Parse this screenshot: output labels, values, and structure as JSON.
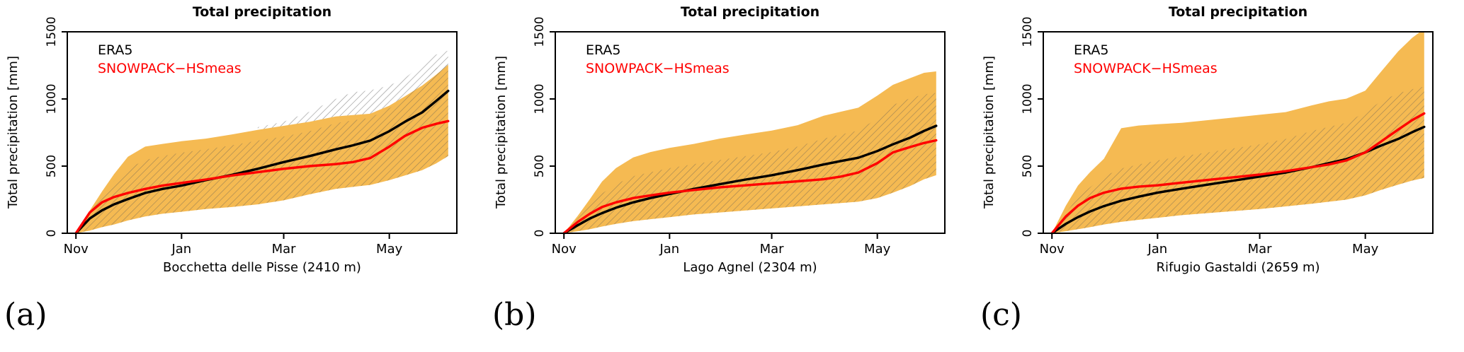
{
  "figure": {
    "colors": {
      "band": "#F5BA52",
      "hatch_line": "#5E5A54",
      "gray_hatch_line": "#8C8C8C",
      "axis": "#000000",
      "era5_line": "#000000",
      "snowpack_line": "#FF0000"
    }
  },
  "chart_data": [
    {
      "type": "line",
      "panel_label": "(a)",
      "title": "Total precipitation",
      "xlabel": "Bocchetta delle Pisse (2410 m)",
      "ylabel": "Total precipitation [mm]",
      "xlim": [
        -5,
        220
      ],
      "ylim": [
        0,
        1500
      ],
      "x_unit": "days since Nov 1",
      "x_ticks": [
        {
          "value": 0,
          "label": "Nov"
        },
        {
          "value": 61,
          "label": "Jan"
        },
        {
          "value": 120,
          "label": "Mar"
        },
        {
          "value": 181,
          "label": "May"
        }
      ],
      "y_ticks": [
        0,
        500,
        1000,
        1500
      ],
      "legend": [
        {
          "label": "ERA5",
          "color": "#000000"
        },
        {
          "label": "SNOWPACK−HSmeas",
          "color": "#FF0000"
        }
      ],
      "x": [
        0,
        8,
        15,
        22,
        30,
        40,
        50,
        61,
        75,
        90,
        105,
        120,
        135,
        150,
        160,
        170,
        181,
        190,
        200,
        208,
        215
      ],
      "series": [
        {
          "name": "ERA5",
          "color": "#000000",
          "values": [
            0,
            110,
            170,
            215,
            255,
            300,
            330,
            355,
            395,
            435,
            480,
            530,
            575,
            625,
            655,
            690,
            760,
            830,
            900,
            985,
            1060
          ]
        },
        {
          "name": "SNOWPACK-HSmeas",
          "color": "#FF0000",
          "values": [
            0,
            155,
            230,
            270,
            300,
            330,
            355,
            375,
            400,
            430,
            455,
            480,
            500,
            515,
            530,
            560,
            645,
            725,
            785,
            815,
            835
          ]
        }
      ],
      "bands": [
        {
          "name": "ensemble-range",
          "style": "orange",
          "lower": [
            0,
            20,
            45,
            65,
            95,
            125,
            145,
            160,
            180,
            195,
            215,
            245,
            290,
            330,
            345,
            360,
            395,
            430,
            470,
            520,
            575
          ],
          "upper": [
            0,
            170,
            310,
            440,
            570,
            645,
            665,
            685,
            705,
            735,
            770,
            800,
            830,
            870,
            880,
            890,
            950,
            1020,
            1100,
            1180,
            1255
          ]
        },
        {
          "name": "ensemble-hatched",
          "style": "hatch",
          "lower": [
            0,
            20,
            45,
            65,
            95,
            125,
            145,
            160,
            180,
            195,
            215,
            245,
            290,
            330,
            345,
            360,
            395,
            430,
            470,
            520,
            575
          ],
          "upper": [
            0,
            160,
            280,
            390,
            480,
            545,
            575,
            600,
            625,
            655,
            690,
            720,
            760,
            820,
            840,
            860,
            930,
            1010,
            1110,
            1230,
            1255
          ]
        },
        {
          "name": "era5-spread-gray",
          "style": "grayhatch",
          "x": [
            105,
            120,
            135,
            150,
            160,
            170,
            181,
            190,
            200,
            208,
            215
          ],
          "lower": [
            770,
            800,
            830,
            870,
            880,
            890,
            950,
            1020,
            1100,
            1180,
            1255
          ],
          "upper": [
            790,
            830,
            905,
            1000,
            1050,
            1065,
            1100,
            1155,
            1255,
            1330,
            1360
          ]
        }
      ]
    },
    {
      "type": "line",
      "panel_label": "(b)",
      "title": "Total precipitation",
      "xlabel": "Lago Agnel (2304 m)",
      "ylabel": "Total precipitation [mm]",
      "xlim": [
        -5,
        220
      ],
      "ylim": [
        0,
        1500
      ],
      "x_unit": "days since Nov 1",
      "x_ticks": [
        {
          "value": 0,
          "label": "Nov"
        },
        {
          "value": 61,
          "label": "Jan"
        },
        {
          "value": 120,
          "label": "Mar"
        },
        {
          "value": 181,
          "label": "May"
        }
      ],
      "y_ticks": [
        0,
        500,
        1000,
        1500
      ],
      "legend": [
        {
          "label": "ERA5",
          "color": "#000000"
        },
        {
          "label": "SNOWPACK−HSmeas",
          "color": "#FF0000"
        }
      ],
      "x": [
        0,
        8,
        15,
        22,
        30,
        40,
        50,
        61,
        75,
        90,
        105,
        120,
        135,
        150,
        160,
        170,
        181,
        190,
        200,
        208,
        215
      ],
      "series": [
        {
          "name": "ERA5",
          "color": "#000000",
          "values": [
            0,
            60,
            110,
            150,
            190,
            230,
            262,
            292,
            330,
            365,
            400,
            432,
            470,
            512,
            538,
            562,
            612,
            662,
            712,
            762,
            800
          ]
        },
        {
          "name": "SNOWPACK-HSmeas",
          "color": "#FF0000",
          "values": [
            0,
            85,
            145,
            195,
            230,
            262,
            282,
            302,
            322,
            342,
            357,
            372,
            387,
            402,
            422,
            452,
            522,
            602,
            642,
            672,
            692
          ]
        }
      ],
      "bands": [
        {
          "name": "ensemble-range",
          "style": "orange",
          "lower": [
            0,
            15,
            30,
            50,
            70,
            90,
            105,
            120,
            140,
            155,
            170,
            185,
            200,
            215,
            225,
            235,
            262,
            302,
            352,
            402,
            432
          ],
          "upper": [
            0,
            130,
            255,
            385,
            485,
            565,
            605,
            635,
            665,
            705,
            735,
            765,
            805,
            875,
            905,
            935,
            1025,
            1105,
            1155,
            1195,
            1205
          ]
        },
        {
          "name": "ensemble-hatched",
          "style": "hatch",
          "lower": [
            0,
            15,
            30,
            50,
            70,
            90,
            105,
            120,
            140,
            155,
            170,
            185,
            200,
            215,
            225,
            235,
            262,
            302,
            352,
            402,
            432
          ],
          "upper": [
            0,
            110,
            205,
            295,
            365,
            425,
            455,
            485,
            515,
            545,
            575,
            605,
            645,
            705,
            735,
            765,
            855,
            955,
            1005,
            1035,
            1045
          ]
        }
      ]
    },
    {
      "type": "line",
      "panel_label": "(c)",
      "title": "Total precipitation",
      "xlabel": "Rifugio Gastaldi (2659 m)",
      "ylabel": "Total precipitation [mm]",
      "xlim": [
        -5,
        220
      ],
      "ylim": [
        0,
        1500
      ],
      "x_unit": "days since Nov 1",
      "x_ticks": [
        {
          "value": 0,
          "label": "Nov"
        },
        {
          "value": 61,
          "label": "Jan"
        },
        {
          "value": 120,
          "label": "Mar"
        },
        {
          "value": 181,
          "label": "May"
        }
      ],
      "y_ticks": [
        0,
        500,
        1000,
        1500
      ],
      "legend": [
        {
          "label": "ERA5",
          "color": "#000000"
        },
        {
          "label": "SNOWPACK−HSmeas",
          "color": "#FF0000"
        }
      ],
      "x": [
        0,
        8,
        15,
        22,
        30,
        40,
        50,
        61,
        75,
        90,
        105,
        120,
        135,
        150,
        160,
        170,
        181,
        190,
        200,
        208,
        215
      ],
      "series": [
        {
          "name": "ERA5",
          "color": "#000000",
          "values": [
            0,
            70,
            120,
            162,
            202,
            242,
            272,
            302,
            332,
            362,
            392,
            422,
            452,
            492,
            522,
            552,
            602,
            652,
            702,
            752,
            792
          ]
        },
        {
          "name": "SNOWPACK-HSmeas",
          "color": "#FF0000",
          "values": [
            0,
            125,
            205,
            262,
            302,
            332,
            347,
            357,
            377,
            397,
            417,
            437,
            462,
            492,
            512,
            542,
            602,
            682,
            772,
            842,
            892
          ]
        }
      ],
      "bands": [
        {
          "name": "ensemble-range",
          "style": "orange",
          "lower": [
            0,
            15,
            30,
            45,
            65,
            85,
            100,
            115,
            135,
            150,
            165,
            180,
            200,
            220,
            235,
            250,
            282,
            322,
            362,
            392,
            412
          ],
          "upper": [
            0,
            205,
            355,
            455,
            555,
            782,
            802,
            812,
            822,
            842,
            862,
            882,
            902,
            952,
            982,
            1002,
            1062,
            1202,
            1355,
            1455,
            1522
          ]
        },
        {
          "name": "ensemble-hatched",
          "style": "hatch",
          "lower": [
            0,
            15,
            30,
            45,
            65,
            85,
            100,
            115,
            135,
            150,
            165,
            180,
            200,
            220,
            235,
            250,
            282,
            322,
            362,
            392,
            412
          ],
          "upper": [
            0,
            155,
            262,
            342,
            422,
            482,
            512,
            542,
            572,
            602,
            632,
            662,
            702,
            762,
            792,
            822,
            902,
            982,
            1042,
            1072,
            1092
          ]
        }
      ]
    }
  ]
}
